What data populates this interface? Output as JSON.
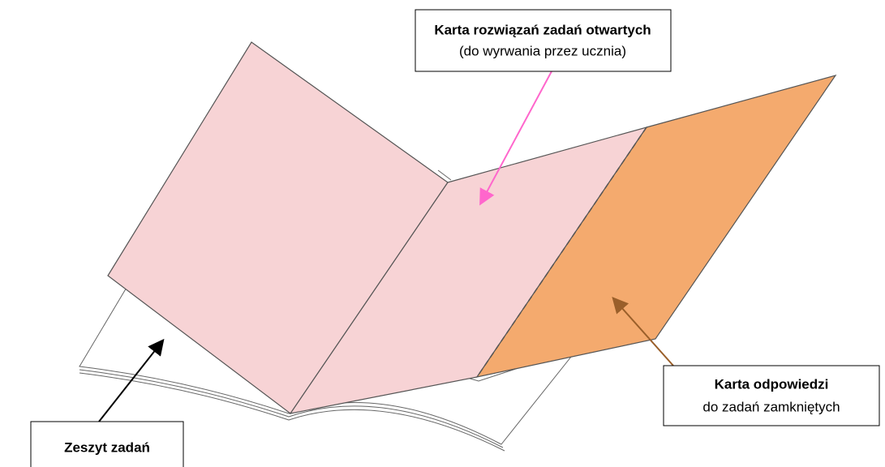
{
  "labels": [
    {
      "title": "Karta rozwiązań zadań otwartych",
      "subtitle": "(do wyrwania przez ucznia)"
    },
    {
      "title": "Karta odpowiedzi",
      "subtitle": "do zadań zamkniętych"
    },
    {
      "title": "Zeszyt zadań"
    }
  ]
}
